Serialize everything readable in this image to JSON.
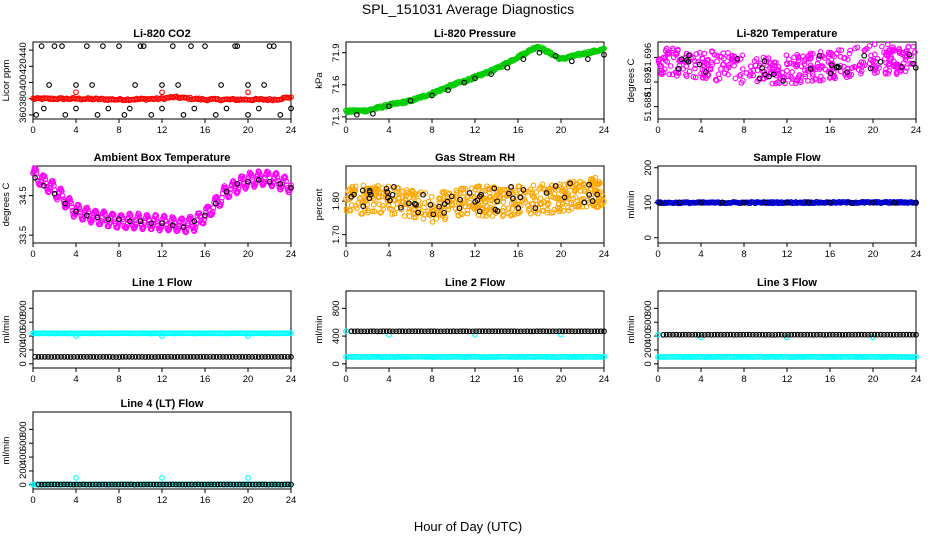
{
  "figure": {
    "title": "SPL_151031  Average Diagnostics",
    "xlabel": "Hour of Day (UTC)"
  },
  "chart_data": [
    {
      "type": "scatter",
      "title": "Li-820 CO2",
      "ylabel": "Licor ppm",
      "xlim": [
        0,
        24
      ],
      "ylim": [
        355,
        450
      ],
      "xticks": [
        "0",
        "4",
        "8",
        "12",
        "16",
        "20",
        "24"
      ],
      "yticks": [
        {
          "v": 360,
          "t": "360"
        },
        {
          "v": 380,
          "t": "380"
        },
        {
          "v": 400,
          "t": "400"
        },
        {
          "v": 420,
          "t": "420"
        },
        {
          "v": 440,
          "t": "440"
        }
      ],
      "series": [
        {
          "color": "#ff0000",
          "style": "dense",
          "x": [
            0,
            4,
            8,
            12,
            13,
            16,
            20,
            22.5,
            24
          ],
          "y": [
            380,
            380,
            379,
            380,
            382,
            379,
            379,
            379,
            382
          ],
          "jitter": 1.2,
          "n": 170
        },
        {
          "color": "#ff0000",
          "x": [
            4,
            12,
            20
          ],
          "y": [
            388,
            388,
            388
          ]
        },
        {
          "color": "#000000",
          "x": [
            0.3,
            1,
            2,
            3,
            4,
            5,
            6,
            7,
            8,
            8.5,
            9,
            10,
            11,
            12,
            13,
            14,
            15,
            16,
            17,
            18,
            19,
            20,
            21,
            22,
            23,
            24
          ],
          "y": [
            360,
            368,
            445,
            360,
            368,
            445,
            360,
            368,
            445,
            360,
            368,
            445,
            360,
            368,
            445,
            360,
            368,
            445,
            360,
            368,
            445,
            360,
            368,
            445,
            360,
            368
          ]
        },
        {
          "color": "#000000",
          "x": [
            1.5,
            5.5,
            9.5,
            13.5,
            17.5,
            21.5,
            4,
            12,
            20,
            0.8,
            2.7,
            6.5,
            10.3,
            14.7,
            18.8,
            22.4
          ],
          "y": [
            397,
            397,
            397,
            397,
            397,
            397,
            397,
            397,
            397,
            445,
            445,
            445,
            445,
            445,
            445,
            445
          ]
        }
      ]
    },
    {
      "type": "scatter",
      "title": "Li-820 Pressure",
      "ylabel": "kPa",
      "xlim": [
        0,
        24
      ],
      "ylim": [
        71.28,
        72.0
      ],
      "xticks": [
        "0",
        "4",
        "8",
        "12",
        "16",
        "20",
        "24"
      ],
      "yticks": [
        {
          "v": 71.3,
          "t": "71.3"
        },
        {
          "v": 71.6,
          "t": "71.6"
        },
        {
          "v": 71.9,
          "t": "71.9"
        }
      ],
      "series": [
        {
          "color": "#00cc00",
          "style": "dense",
          "x": [
            0,
            2,
            4,
            6,
            8,
            10,
            12,
            14,
            16,
            17.8,
            20,
            22,
            24
          ],
          "y": [
            71.35,
            71.36,
            71.41,
            71.45,
            71.52,
            71.6,
            71.67,
            71.75,
            71.86,
            71.96,
            71.84,
            71.89,
            71.93
          ],
          "jitter": 0.012,
          "n": 300
        },
        {
          "color": "#000000",
          "x": [
            1,
            2.5,
            4,
            6,
            8,
            9.5,
            11,
            12,
            13.5,
            15,
            16.5,
            18,
            19.5,
            21,
            22.5,
            24
          ],
          "y": [
            71.32,
            71.33,
            71.4,
            71.45,
            71.5,
            71.55,
            71.62,
            71.66,
            71.7,
            71.76,
            71.84,
            71.9,
            71.87,
            71.82,
            71.84,
            71.88
          ]
        }
      ]
    },
    {
      "type": "scatter",
      "title": "Li-820 Temperature",
      "ylabel": "degrees C",
      "xlim": [
        0,
        24
      ],
      "ylim": [
        51.686,
        51.6985
      ],
      "xticks": [
        "0",
        "4",
        "8",
        "12",
        "16",
        "20",
        "24"
      ],
      "yticks": [
        {
          "v": 51.688,
          "t": "51.688"
        },
        {
          "v": 51.692,
          "t": "51.692"
        },
        {
          "v": 51.696,
          "t": "51.696"
        }
      ],
      "series": [
        {
          "color": "#ff00ff",
          "style": "scatter",
          "x": [
            0,
            4,
            8,
            12,
            16,
            20,
            24
          ],
          "y": [
            51.6955,
            51.695,
            51.694,
            51.694,
            51.6948,
            51.6958,
            51.6955
          ],
          "jitter": 0.0024,
          "n": 420
        },
        {
          "color": "#000000",
          "style": "scatter",
          "x": [
            0,
            4,
            8,
            12,
            16,
            20,
            24
          ],
          "y": [
            51.6955,
            51.695,
            51.694,
            51.694,
            51.6948,
            51.6958,
            51.6955
          ],
          "jitter": 0.0018,
          "n": 30
        }
      ]
    },
    {
      "type": "scatter",
      "title": "Ambient Box Temperature",
      "ylabel": "degrees C",
      "xlim": [
        0,
        24
      ],
      "ylim": [
        33.3,
        35.25
      ],
      "xticks": [
        "0",
        "4",
        "8",
        "12",
        "16",
        "20",
        "24"
      ],
      "yticks": [
        {
          "v": 33.5,
          "t": "33.5"
        },
        {
          "v": 34.5,
          "t": "34.5"
        }
      ],
      "series": [
        {
          "color": "#ff00ff",
          "style": "wave",
          "x": [
            0,
            2,
            4,
            6,
            8,
            10,
            12,
            14,
            15,
            16,
            18,
            20,
            22,
            24
          ],
          "y": [
            35.05,
            34.65,
            34.1,
            33.95,
            33.85,
            33.85,
            33.8,
            33.75,
            33.8,
            34.0,
            34.6,
            34.9,
            34.95,
            34.75
          ],
          "amp": 0.18,
          "period": 0.8,
          "n": 420
        },
        {
          "color": "#000000",
          "x": [
            0.2,
            1,
            2,
            3,
            4,
            5,
            6,
            7,
            8,
            9,
            10,
            11,
            12,
            13,
            14,
            15,
            16,
            17,
            18,
            19,
            20,
            21,
            22,
            23,
            24
          ],
          "y": [
            34.95,
            34.75,
            34.55,
            34.3,
            34.1,
            34.0,
            33.95,
            33.9,
            33.9,
            33.85,
            33.85,
            33.8,
            33.8,
            33.75,
            33.7,
            33.85,
            34.0,
            34.3,
            34.6,
            34.8,
            34.85,
            34.9,
            34.85,
            34.8,
            34.7
          ]
        }
      ]
    },
    {
      "type": "scatter",
      "title": "Gas Stream RH",
      "ylabel": "percent",
      "xlim": [
        0,
        24
      ],
      "ylim": [
        1.675,
        1.905
      ],
      "xticks": [
        "0",
        "4",
        "8",
        "12",
        "16",
        "20",
        "24"
      ],
      "yticks": [
        {
          "v": 1.7,
          "t": "1.70"
        },
        {
          "v": 1.8,
          "t": "1.80"
        }
      ],
      "series": [
        {
          "color": "#ffa500",
          "style": "scatter",
          "x": [
            0,
            4,
            8,
            12,
            16,
            20,
            24
          ],
          "y": [
            1.81,
            1.8,
            1.78,
            1.8,
            1.8,
            1.81,
            1.83
          ],
          "jitter": 0.045,
          "n": 520
        },
        {
          "color": "#000000",
          "style": "scatter",
          "x": [
            0,
            4,
            8,
            12,
            16,
            20,
            24
          ],
          "y": [
            1.82,
            1.81,
            1.79,
            1.8,
            1.81,
            1.82,
            1.84
          ],
          "jitter": 0.035,
          "n": 55
        }
      ]
    },
    {
      "type": "scatter",
      "title": "Sample Flow",
      "ylabel": "ml/min",
      "xlim": [
        0,
        24
      ],
      "ylim": [
        -15,
        205
      ],
      "xticks": [
        "0",
        "4",
        "8",
        "12",
        "16",
        "20",
        "24"
      ],
      "yticks": [
        {
          "v": 0,
          "t": "0"
        },
        {
          "v": 100,
          "t": "100"
        },
        {
          "v": 200,
          "t": "200"
        }
      ],
      "series": [
        {
          "color": "#0000cc",
          "style": "dense",
          "x": [
            0,
            24
          ],
          "y": [
            100,
            101
          ],
          "jitter": 2,
          "n": 220
        },
        {
          "color": "#000000",
          "x": [
            0.2,
            2,
            4,
            6,
            8,
            10,
            12,
            14,
            16,
            18,
            20,
            22,
            24
          ],
          "y": [
            99,
            101,
            100,
            101,
            100,
            101,
            100,
            102,
            101,
            100,
            101,
            100,
            99
          ]
        }
      ]
    },
    {
      "type": "scatter",
      "title": "Line 1 Flow",
      "ylabel": "ml/min",
      "xlim": [
        0,
        24
      ],
      "ylim": [
        -60,
        1050
      ],
      "xticks": [
        "0",
        "4",
        "8",
        "12",
        "16",
        "20",
        "24"
      ],
      "yticks": [
        {
          "v": 0,
          "t": "0"
        },
        {
          "v": 200,
          "t": "200"
        },
        {
          "v": 400,
          "t": "400"
        },
        {
          "v": 600,
          "t": "600"
        },
        {
          "v": 800,
          "t": "800"
        }
      ],
      "series": [
        {
          "color": "#00ffff",
          "style": "dense",
          "x": [
            0,
            24
          ],
          "y": [
            440,
            440
          ],
          "jitter": 3,
          "n": 170
        },
        {
          "color": "#00ffff",
          "x": [
            4,
            12,
            20
          ],
          "y": [
            400,
            400,
            400
          ]
        },
        {
          "color": "#000000",
          "style": "dense",
          "x": [
            0.2,
            24
          ],
          "y": [
            100,
            100
          ],
          "jitter": 1,
          "n": 80
        }
      ]
    },
    {
      "type": "scatter",
      "title": "Line 2 Flow",
      "ylabel": "ml/min",
      "xlim": [
        0,
        24
      ],
      "ylim": [
        -60,
        1050
      ],
      "xticks": [
        "0",
        "4",
        "8",
        "12",
        "16",
        "20",
        "24"
      ],
      "yticks": [
        {
          "v": 0,
          "t": "0"
        },
        {
          "v": 400,
          "t": "400"
        },
        {
          "v": 800,
          "t": "800"
        }
      ],
      "series": [
        {
          "color": "#00ffff",
          "style": "dense",
          "x": [
            0,
            24
          ],
          "y": [
            100,
            100
          ],
          "jitter": 3,
          "n": 170
        },
        {
          "color": "#00ffff",
          "x": [
            0,
            4,
            12,
            20
          ],
          "y": [
            470,
            420,
            420,
            420
          ]
        },
        {
          "color": "#000000",
          "style": "dense",
          "x": [
            0.5,
            24
          ],
          "y": [
            470,
            470
          ],
          "jitter": 1,
          "n": 80
        }
      ]
    },
    {
      "type": "scatter",
      "title": "Line 3 Flow",
      "ylabel": "ml/min",
      "xlim": [
        0,
        24
      ],
      "ylim": [
        -60,
        1050
      ],
      "xticks": [
        "0",
        "4",
        "8",
        "12",
        "16",
        "20",
        "24"
      ],
      "yticks": [
        {
          "v": 0,
          "t": "0"
        },
        {
          "v": 200,
          "t": "200"
        },
        {
          "v": 400,
          "t": "400"
        },
        {
          "v": 600,
          "t": "600"
        },
        {
          "v": 800,
          "t": "800"
        }
      ],
      "series": [
        {
          "color": "#00ffff",
          "style": "dense",
          "x": [
            0,
            24
          ],
          "y": [
            100,
            100
          ],
          "jitter": 3,
          "n": 170
        },
        {
          "color": "#00ffff",
          "x": [
            0,
            4,
            12,
            20
          ],
          "y": [
            420,
            380,
            380,
            380
          ]
        },
        {
          "color": "#000000",
          "style": "dense",
          "x": [
            0.5,
            24
          ],
          "y": [
            420,
            420
          ],
          "jitter": 1,
          "n": 80
        }
      ]
    },
    {
      "type": "scatter",
      "title": "Line 4 (LT) Flow",
      "ylabel": "ml/min",
      "xlim": [
        0,
        24
      ],
      "ylim": [
        -60,
        1050
      ],
      "xticks": [
        "0",
        "4",
        "8",
        "12",
        "16",
        "20",
        "24"
      ],
      "yticks": [
        {
          "v": 0,
          "t": "0"
        },
        {
          "v": 200,
          "t": "200"
        },
        {
          "v": 400,
          "t": "400"
        },
        {
          "v": 600,
          "t": "600"
        },
        {
          "v": 800,
          "t": "800"
        }
      ],
      "series": [
        {
          "color": "#00ffff",
          "style": "dense",
          "x": [
            0,
            24
          ],
          "y": [
            5,
            5
          ],
          "jitter": 2,
          "n": 170
        },
        {
          "color": "#00ffff",
          "x": [
            4,
            12,
            20
          ],
          "y": [
            100,
            100,
            100
          ]
        },
        {
          "color": "#000000",
          "style": "dense",
          "x": [
            0.5,
            24
          ],
          "y": [
            5,
            5
          ],
          "jitter": 1,
          "n": 80
        }
      ]
    }
  ]
}
